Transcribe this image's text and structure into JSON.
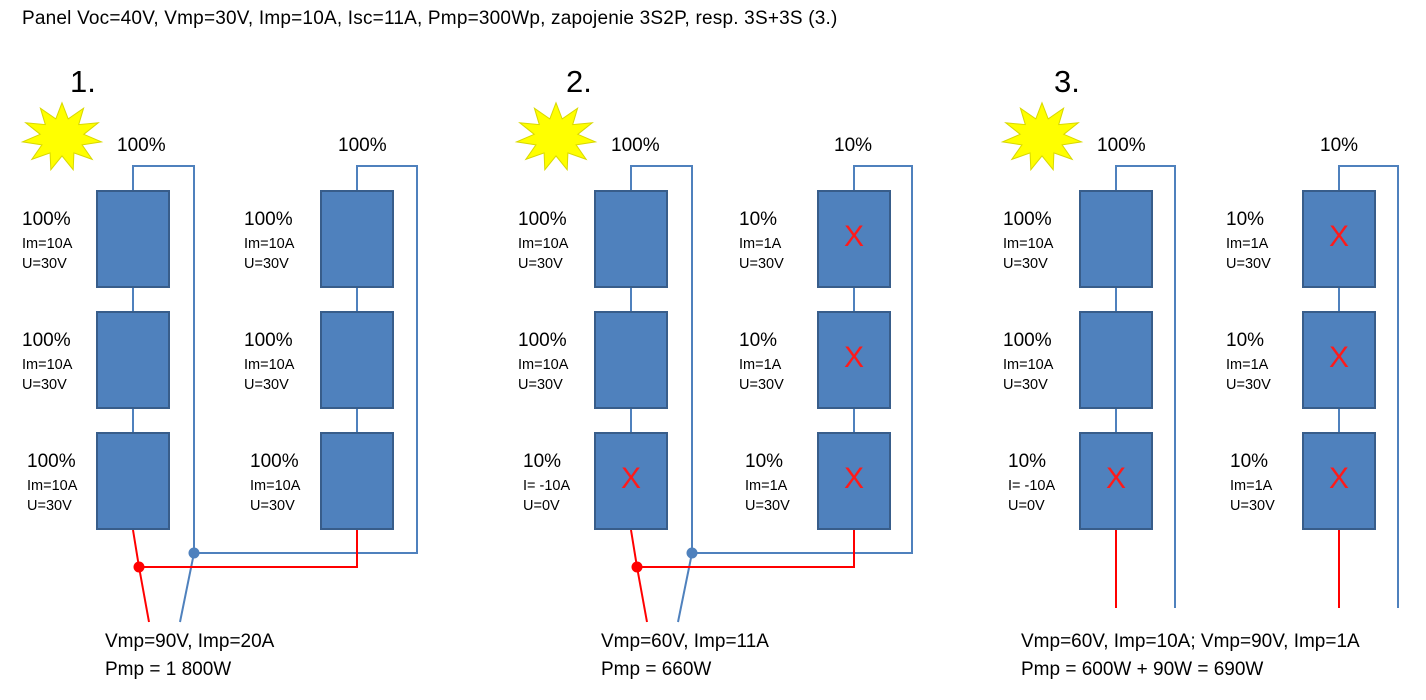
{
  "header": "Panel  Voc=40V, Vmp=30V, Imp=10A, Isc=11A, Pmp=300Wp, zapojenie 3S2P, resp. 3S+3S (3.)",
  "colors": {
    "panel": "#4f81bd",
    "panel_border": "#385d8a",
    "plus_wire": "#ff0000",
    "minus_wire": "#4f81bd",
    "sun": "#ffff00",
    "fault_mark": "#ff1a1a"
  },
  "icons": {
    "sun": "sun-icon",
    "fault": "x-mark-icon"
  },
  "scenarios": [
    {
      "number": "1.",
      "string_a": {
        "top": "100%",
        "panels": [
          {
            "pct": "100%",
            "im": "Im=10A",
            "u": "U=30V",
            "fault": false
          },
          {
            "pct": "100%",
            "im": "Im=10A",
            "u": "U=30V",
            "fault": false
          },
          {
            "pct": "100%",
            "im": "Im=10A",
            "u": "U=30V",
            "fault": false
          }
        ]
      },
      "string_b": {
        "top": "100%",
        "panels": [
          {
            "pct": "100%",
            "im": "Im=10A",
            "u": "U=30V",
            "fault": false
          },
          {
            "pct": "100%",
            "im": "Im=10A",
            "u": "U=30V",
            "fault": false
          },
          {
            "pct": "100%",
            "im": "Im=10A",
            "u": "U=30V",
            "fault": false
          }
        ]
      },
      "result": {
        "line1": "Vmp=90V, Imp=20A",
        "line2": "Pmp = 1 800W"
      }
    },
    {
      "number": "2.",
      "string_a": {
        "top": "100%",
        "panels": [
          {
            "pct": "100%",
            "im": "Im=10A",
            "u": "U=30V",
            "fault": false
          },
          {
            "pct": "100%",
            "im": "Im=10A",
            "u": "U=30V",
            "fault": false
          },
          {
            "pct": "10%",
            "im": "I= -10A",
            "u": "U=0V",
            "fault": true,
            "mark": "X"
          }
        ]
      },
      "string_b": {
        "top": "10%",
        "panels": [
          {
            "pct": "10%",
            "im": "Im=1A",
            "u": "U=30V",
            "fault": true,
            "mark": "X"
          },
          {
            "pct": "10%",
            "im": "Im=1A",
            "u": "U=30V",
            "fault": true,
            "mark": "X"
          },
          {
            "pct": "10%",
            "im": "Im=1A",
            "u": "U=30V",
            "fault": true,
            "mark": "X"
          }
        ]
      },
      "result": {
        "line1": "Vmp=60V, Imp=11A",
        "line2": "Pmp = 660W"
      }
    },
    {
      "number": "3.",
      "string_a": {
        "top": "100%",
        "panels": [
          {
            "pct": "100%",
            "im": "Im=10A",
            "u": "U=30V",
            "fault": false
          },
          {
            "pct": "100%",
            "im": "Im=10A",
            "u": "U=30V",
            "fault": false
          },
          {
            "pct": "10%",
            "im": "I= -10A",
            "u": "U=0V",
            "fault": true,
            "mark": "X"
          }
        ]
      },
      "string_b": {
        "top": "10%",
        "panels": [
          {
            "pct": "10%",
            "im": "Im=1A",
            "u": "U=30V",
            "fault": true,
            "mark": "X"
          },
          {
            "pct": "10%",
            "im": "Im=1A",
            "u": "U=30V",
            "fault": true,
            "mark": "X"
          },
          {
            "pct": "10%",
            "im": "Im=1A",
            "u": "U=30V",
            "fault": true,
            "mark": "X"
          }
        ]
      },
      "result": {
        "line1": "Vmp=60V, Imp=10A; Vmp=90V, Imp=1A",
        "line2": "Pmp = 600W + 90W = 690W"
      }
    }
  ]
}
